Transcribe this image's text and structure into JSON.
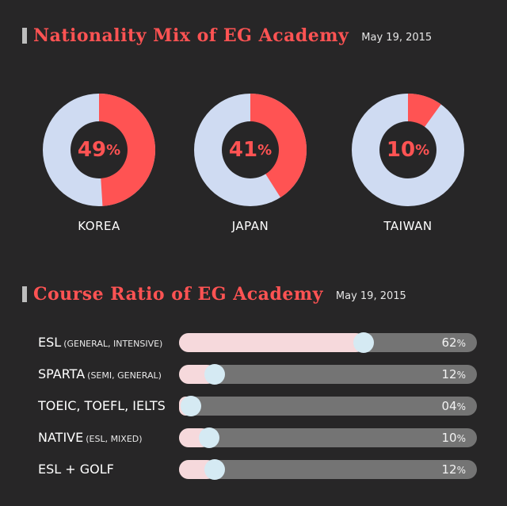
{
  "section1": {
    "title": "Nationality Mix of EG Academy",
    "date": "May 19, 2015"
  },
  "section2": {
    "title": "Course Ratio of EG Academy",
    "date": "May 19, 2015"
  },
  "colors": {
    "accent": "#ff5353",
    "donut_rest": "#cfdbf2",
    "bar_fill": "#f6d9dc",
    "track": "#747474",
    "knob": "#d5eaf3",
    "background": "#272627"
  },
  "chart_data": [
    {
      "type": "pie",
      "title": "Nationality Mix of EG Academy",
      "categories": [
        "KOREA",
        "JAPAN",
        "TAIWAN"
      ],
      "values": [
        49,
        41,
        10
      ],
      "value_labels": [
        "49",
        "41",
        "10"
      ],
      "unit": "%"
    },
    {
      "type": "bar",
      "title": "Course Ratio of EG Academy",
      "categories": [
        "ESL",
        "SPARTA",
        "TOEIC, TOEFL, IELTS",
        "NATIVE",
        "ESL + GOLF"
      ],
      "subtitles": [
        "(GENERAL, INTENSIVE)",
        "(SEMI, GENERAL)",
        "",
        "(ESL, MIXED)",
        ""
      ],
      "values": [
        62,
        12,
        4,
        10,
        12
      ],
      "value_labels": [
        "62",
        "12",
        "04",
        "10",
        "12"
      ],
      "unit": "%",
      "xlim": [
        0,
        100
      ]
    }
  ]
}
